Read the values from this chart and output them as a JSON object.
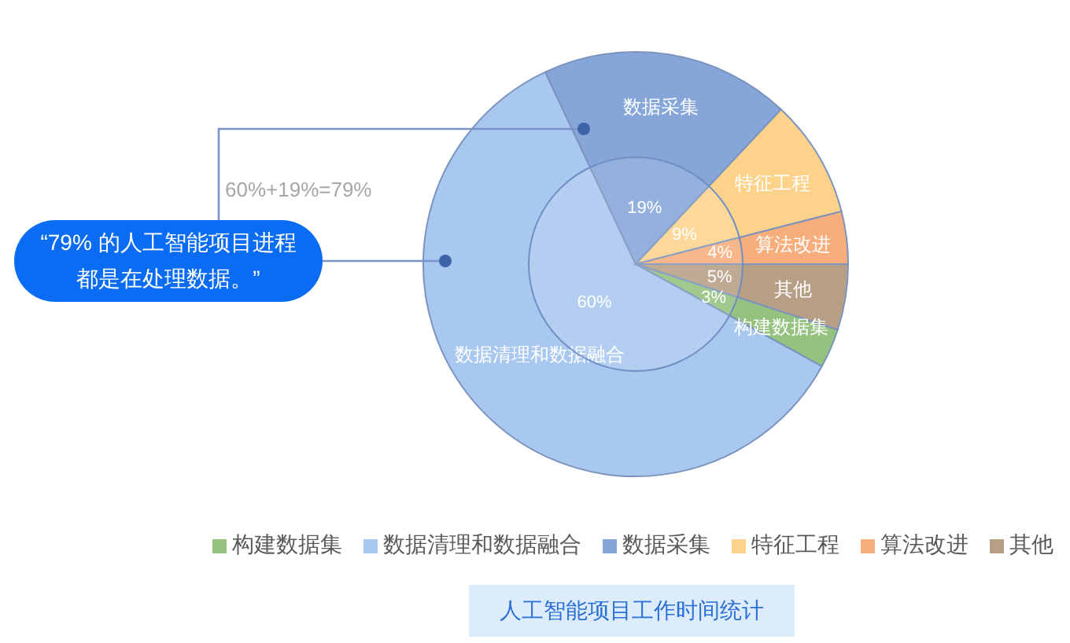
{
  "chart_data": {
    "type": "pie",
    "title": "人工智能项目工作时间统计",
    "categories": [
      "构建数据集",
      "数据清理和数据融合",
      "数据采集",
      "特征工程",
      "算法改进",
      "其他"
    ],
    "values": [
      3,
      60,
      19,
      9,
      4,
      5
    ],
    "colors": [
      "#95c27f",
      "#a9c8ef",
      "#86a6d9",
      "#fdd38c",
      "#f7ad7c",
      "#b79f86"
    ],
    "value_labels": [
      "3%",
      "60%",
      "19%",
      "9%",
      "4%",
      "5%"
    ],
    "legend": "bottom",
    "annotations": [
      "60%+19%=79%",
      "“79% 的人工智能项目进程都是在处理数据。”"
    ]
  }
}
